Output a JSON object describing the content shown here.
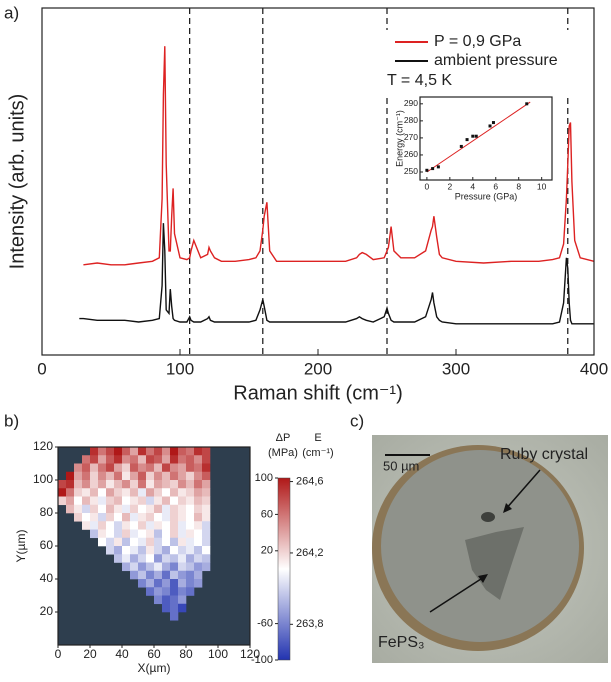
{
  "chart_data": [
    {
      "type": "line",
      "panel_label": "a)",
      "xlabel": "Raman shift (cm⁻¹)",
      "ylabel": "Intensity (arb. units)",
      "xlim": [
        0,
        400
      ],
      "xticks": [
        0,
        100,
        200,
        300,
        400
      ],
      "ylim": [
        0,
        100
      ],
      "x": [
        27,
        30,
        40,
        50,
        60,
        70,
        80,
        85,
        87,
        88,
        89,
        90,
        92,
        93,
        94,
        95,
        96,
        100,
        105,
        107,
        108,
        110,
        115,
        120,
        121,
        122,
        125,
        130,
        140,
        150,
        155,
        158,
        160,
        161,
        163,
        165,
        170,
        180,
        200,
        220,
        228,
        230,
        232,
        235,
        240,
        248,
        250,
        251,
        253,
        255,
        260,
        270,
        278,
        282,
        283,
        284,
        286,
        288,
        290,
        300,
        320,
        340,
        360,
        370,
        375,
        378,
        380,
        381,
        382,
        383,
        384,
        386,
        390,
        400
      ],
      "series": [
        {
          "name": "P = 0,9 GPa",
          "color": "#dd2222",
          "values": [
            null,
            26,
            26.5,
            26,
            26,
            26.5,
            27,
            28,
            45,
            75,
            89,
            55,
            30,
            30,
            40,
            48,
            35,
            28,
            27.5,
            28,
            30,
            33,
            28,
            29,
            31,
            30,
            28,
            27,
            27,
            27.5,
            28,
            30,
            36,
            40,
            44,
            30,
            27,
            27,
            27,
            27,
            28,
            29,
            29.5,
            29,
            27.5,
            28,
            30,
            31,
            37,
            30,
            28,
            28,
            30,
            36,
            37,
            40,
            34,
            29,
            28,
            27,
            26.5,
            27,
            27,
            27.5,
            28,
            32,
            45,
            55,
            66,
            67,
            50,
            33,
            28,
            27
          ]
        },
        {
          "name": "ambient pressure",
          "color": "#111111",
          "values": [
            10.5,
            10.5,
            10,
            10,
            10,
            9.5,
            10,
            10.5,
            20,
            38,
            30,
            13,
            12,
            19,
            14,
            10.5,
            10,
            9.5,
            9.5,
            11,
            10,
            9.5,
            9.5,
            10.5,
            11,
            10,
            9.5,
            9.5,
            9.5,
            9.5,
            10,
            13,
            16,
            14,
            10,
            9.5,
            9.5,
            9.5,
            9.5,
            9.5,
            10.5,
            11,
            10.5,
            10,
            9.5,
            11,
            13.5,
            12,
            10,
            9.5,
            9.5,
            9.5,
            11,
            16,
            18,
            15,
            11,
            10,
            9.5,
            9,
            9,
            9,
            9,
            9,
            9.5,
            15,
            28,
            25,
            15,
            10,
            9,
            9,
            9,
            9
          ]
        }
      ],
      "vlines": [
        107,
        160,
        250,
        381
      ],
      "annotation": "T = 4,5 K"
    },
    {
      "type": "scatter",
      "xlabel": "Pressure (GPa)",
      "ylabel": "Energy (cm⁻¹)",
      "xlim": [
        -0.6,
        10.9
      ],
      "xticks": [
        0,
        2,
        4,
        6,
        8,
        10
      ],
      "ylim": [
        245.3,
        294
      ],
      "yticks": [
        250,
        260,
        270,
        280,
        290
      ],
      "x": [
        0,
        0.5,
        1,
        3,
        3.5,
        4,
        4.3,
        5.5,
        5.8,
        8.7
      ],
      "values": [
        251,
        252,
        253,
        265,
        269,
        271,
        271,
        277,
        279,
        290
      ],
      "color": "#111111",
      "line": {
        "x": [
          0,
          9
        ],
        "values": [
          250,
          291
        ],
        "color": "#dd2222"
      }
    },
    {
      "type": "heatmap",
      "panel_label": "b)",
      "xlabel": "X(µm)",
      "ylabel": "Y(µm)",
      "xlim": [
        0,
        120
      ],
      "xticks": [
        0,
        20,
        40,
        60,
        80,
        100,
        120
      ],
      "ylim": [
        0,
        120
      ],
      "yticks": [
        20,
        40,
        60,
        80,
        100,
        120
      ],
      "background": "#2e3e4e",
      "x": [
        2.5,
        7.5,
        12.5,
        17.5,
        22.5,
        27.5,
        32.5,
        37.5,
        42.5,
        47.5,
        52.5,
        57.5,
        62.5,
        67.5,
        72.5,
        77.5,
        82.5,
        87.5,
        92.5
      ],
      "y": [
        117.5,
        112.5,
        107.5,
        102.5,
        97.5,
        92.5,
        87.5,
        82.5,
        77.5,
        72.5,
        67.5,
        62.5,
        57.5,
        52.5,
        47.5,
        42.5,
        37.5,
        32.5,
        27.5,
        22.5,
        17.5
      ],
      "z": [
        [
          null,
          null,
          null,
          null,
          90,
          60,
          80,
          100,
          70,
          40,
          90,
          60,
          80,
          50,
          100,
          70,
          60,
          90,
          80
        ],
        [
          null,
          null,
          null,
          60,
          80,
          40,
          70,
          90,
          50,
          60,
          30,
          80,
          70,
          40,
          90,
          60,
          70,
          50,
          80
        ],
        [
          null,
          null,
          50,
          70,
          30,
          60,
          80,
          40,
          20,
          70,
          50,
          60,
          30,
          80,
          50,
          40,
          70,
          60,
          90
        ],
        [
          null,
          100,
          40,
          60,
          20,
          50,
          30,
          60,
          10,
          40,
          70,
          20,
          50,
          30,
          60,
          40,
          20,
          50,
          70
        ],
        [
          80,
          90,
          30,
          50,
          20,
          40,
          10,
          30,
          50,
          20,
          60,
          10,
          40,
          30,
          20,
          50,
          30,
          60,
          40
        ],
        [
          100,
          60,
          20,
          10,
          30,
          0,
          40,
          20,
          10,
          30,
          -10,
          40,
          20,
          0,
          30,
          10,
          20,
          40,
          30
        ],
        [
          20,
          40,
          0,
          30,
          10,
          -10,
          20,
          30,
          0,
          10,
          20,
          -20,
          10,
          30,
          0,
          20,
          10,
          30,
          20
        ],
        [
          null,
          30,
          10,
          -20,
          20,
          0,
          30,
          10,
          -10,
          20,
          0,
          10,
          30,
          -10,
          20,
          10,
          0,
          20,
          10
        ],
        [
          null,
          null,
          20,
          0,
          10,
          -20,
          20,
          0,
          30,
          -10,
          10,
          20,
          0,
          -10,
          20,
          10,
          0,
          30,
          10
        ],
        [
          null,
          null,
          null,
          10,
          -10,
          20,
          0,
          -20,
          10,
          0,
          20,
          -10,
          10,
          0,
          20,
          -10,
          0,
          10,
          -20
        ],
        [
          null,
          null,
          null,
          null,
          -30,
          10,
          0,
          -20,
          20,
          -10,
          0,
          10,
          -30,
          0,
          20,
          -10,
          10,
          0,
          -20
        ],
        [
          null,
          null,
          null,
          null,
          null,
          0,
          -20,
          10,
          -30,
          0,
          -10,
          20,
          -20,
          0,
          -30,
          10,
          -10,
          0,
          -20
        ],
        [
          null,
          null,
          null,
          null,
          null,
          null,
          -20,
          -40,
          0,
          -10,
          -30,
          10,
          -20,
          -40,
          0,
          -20,
          -10,
          -30,
          0
        ],
        [
          null,
          null,
          null,
          null,
          null,
          null,
          null,
          -30,
          -10,
          -40,
          -20,
          0,
          -50,
          -20,
          -30,
          -10,
          -40,
          -20,
          -30
        ],
        [
          null,
          null,
          null,
          null,
          null,
          null,
          null,
          null,
          -40,
          -20,
          -50,
          -30,
          -10,
          -40,
          -60,
          -20,
          -30,
          -50,
          -40
        ],
        [
          null,
          null,
          null,
          null,
          null,
          null,
          null,
          null,
          null,
          -50,
          -30,
          -60,
          -40,
          -70,
          -30,
          -50,
          -60,
          -40,
          null
        ],
        [
          null,
          null,
          null,
          null,
          null,
          null,
          null,
          null,
          null,
          null,
          -60,
          -40,
          -70,
          -50,
          -80,
          -40,
          -60,
          -50,
          null
        ],
        [
          null,
          null,
          null,
          null,
          null,
          null,
          null,
          null,
          null,
          null,
          null,
          -70,
          -50,
          -60,
          -80,
          -60,
          -70,
          null,
          null
        ],
        [
          null,
          null,
          null,
          null,
          null,
          null,
          null,
          null,
          null,
          null,
          null,
          null,
          -60,
          -80,
          -70,
          -50,
          null,
          null,
          null
        ],
        [
          null,
          null,
          null,
          null,
          null,
          null,
          null,
          null,
          null,
          null,
          null,
          null,
          null,
          -80,
          -70,
          -90,
          null,
          null,
          null
        ],
        [
          null,
          null,
          null,
          null,
          null,
          null,
          null,
          null,
          null,
          null,
          null,
          null,
          null,
          null,
          -70,
          null,
          null,
          null,
          null
        ]
      ],
      "colorbar": {
        "title": [
          "ΔP",
          "(MPa)"
        ],
        "clim": [
          -100,
          100
        ],
        "ticks": [
          100,
          60,
          20,
          -60,
          -100
        ],
        "colors": [
          "#2233b0",
          "#ffffff",
          "#b01818"
        ],
        "e_title": [
          "E",
          "(cm⁻¹)"
        ],
        "elim": [
          263.6,
          264.62
        ],
        "e_ticks": [
          {
            "value": 264.6,
            "label": "264,6"
          },
          {
            "value": 264.2,
            "label": "264,2"
          },
          {
            "value": 263.8,
            "label": "263,8"
          }
        ]
      }
    }
  ],
  "photo": {
    "panel_label": "c)",
    "scale_bar": "50 µm",
    "labels": [
      "Ruby crystal",
      "FePS₃"
    ]
  }
}
